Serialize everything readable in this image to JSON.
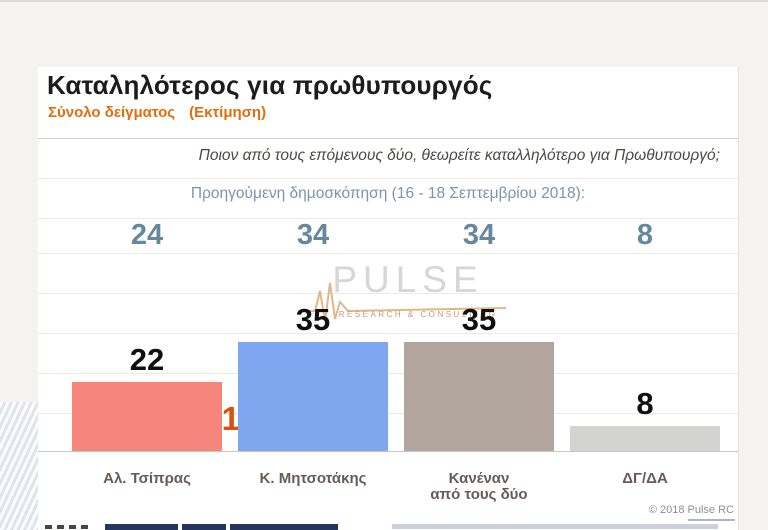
{
  "header": {
    "title": "Καταληλότερος για πρωθυπουργός",
    "subtitle_main": "Σύνολο δείγματος",
    "subtitle_paren": "(Εκτίμηση)"
  },
  "question": {
    "text": "Ποιον από τους επόμενους δύο, θεωρείτε καταλληλότερο για Πρωθυπουργό;"
  },
  "previous_poll": {
    "label": "Προηγούμενη δημοσκόπηση (16 - 18 Σεπτεμβρίου 2018):"
  },
  "watermark": {
    "brand": "PULSE",
    "tagline": "RESEARCH & CONSULTING"
  },
  "annotation": {
    "left_arrow": "◄",
    "value": "13",
    "right_arrow": "►",
    "color": "#d8520e"
  },
  "chart_data": {
    "type": "bar",
    "title": "Καταληλότερος για πρωθυπουργός",
    "subtitle": "Σύνολο δείγματος (Εκτίμηση)",
    "categories": [
      "Αλ. Τσίπρας",
      "Κ. Μητσοτάκης",
      "Κανέναν\nαπό τους δύο",
      "ΔΓ/ΔΑ"
    ],
    "values": [
      22,
      35,
      35,
      8
    ],
    "previous_values": [
      24,
      34,
      34,
      8
    ],
    "difference_annotation": 13,
    "bar_colors": [
      "#f5857d",
      "#7fa7f0",
      "#b2a59d",
      "#d3d3d2"
    ],
    "value_label_color": "#101010",
    "previous_value_color": "#66879d",
    "ylim": [
      0,
      40
    ],
    "grid": true,
    "legend": "none"
  },
  "footer": {
    "copyright": "© 2018 Pulse RC"
  },
  "colors": {
    "page_background": "#f4f3f0",
    "card_background": "#ffffff",
    "subtitle_orange": "#e36d0c",
    "slate_text": "#7b95a8"
  }
}
